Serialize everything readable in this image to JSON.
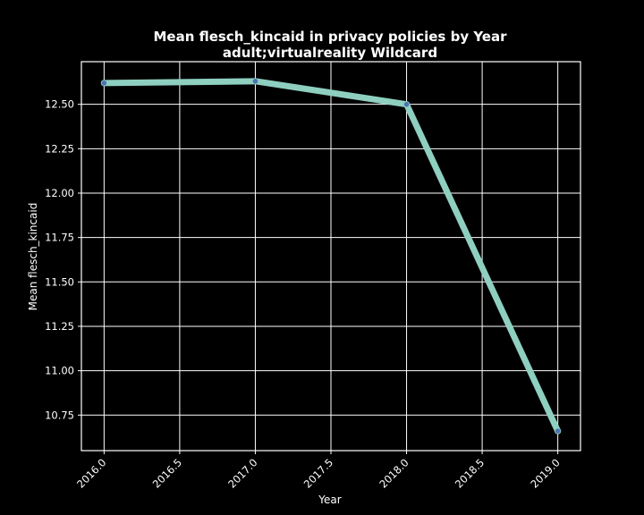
{
  "colors": {
    "background": "#000000",
    "line": "#8ecfc0",
    "marker": "#4c72b0",
    "grid": "#ffffff",
    "text": "#ffffff"
  },
  "chart_data": {
    "type": "line",
    "title": "Mean flesch_kincaid in privacy policies by Year",
    "subtitle": "adult;virtualreality Wildcard",
    "xlabel": "Year",
    "ylabel": "Mean flesch_kincaid",
    "x": [
      2016.0,
      2017.0,
      2018.0,
      2019.0
    ],
    "series": [
      {
        "values": [
          12.62,
          12.63,
          12.5,
          10.66
        ]
      }
    ],
    "xlim": [
      2015.85,
      2019.15
    ],
    "ylim": [
      10.55,
      12.74
    ],
    "xticks": [
      "2016.0",
      "2016.5",
      "2017.0",
      "2017.5",
      "2018.0",
      "2018.5",
      "2019.0"
    ],
    "yticks": [
      "10.75",
      "11.00",
      "11.25",
      "11.50",
      "11.75",
      "12.00",
      "12.25",
      "12.50"
    ],
    "grid": true,
    "legend": "none"
  }
}
